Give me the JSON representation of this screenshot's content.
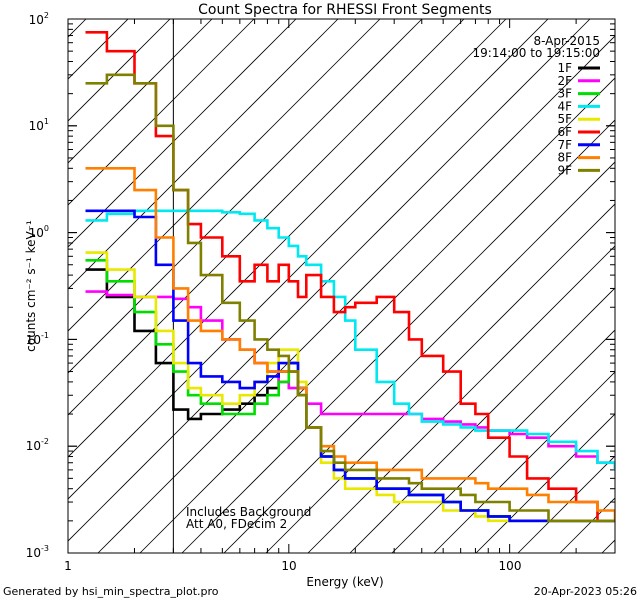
{
  "chart_data": {
    "type": "line",
    "title": "Count Spectra for RHESSI Front Segments",
    "date": "8-Apr-2015",
    "time_range": "19:14:00 to 19:15:00",
    "xlabel": "Energy (keV)",
    "ylabel": "counts cm⁻² s⁻¹ keV⁻¹",
    "xscale": "log",
    "yscale": "log",
    "xlim": [
      1,
      300
    ],
    "ylim": [
      0.001,
      100
    ],
    "x_tick_labels": [
      "1",
      "10",
      "100"
    ],
    "y_tick_labels": [
      {
        "base": "10",
        "exp": "-3"
      },
      {
        "base": "10",
        "exp": "-2"
      },
      {
        "base": "10",
        "exp": "-1"
      },
      {
        "base": "10",
        "exp": "0"
      },
      {
        "base": "10",
        "exp": "1"
      },
      {
        "base": "10",
        "exp": "2"
      }
    ],
    "hatched_region_max_energy": 3,
    "annotations": [
      "Includes Background",
      "Att A0, FDecim 2"
    ],
    "footer_left": "Generated by hsi_min_spectra_plot.pro",
    "footer_right": "20-Apr-2023 05:26",
    "legend_position": "top-right",
    "x": [
      1.2,
      1.5,
      2,
      2.5,
      3,
      3.5,
      4,
      5,
      6,
      7,
      8,
      9,
      10,
      11,
      12,
      14,
      16,
      18,
      20,
      25,
      30,
      35,
      40,
      50,
      60,
      70,
      80,
      100,
      120,
      150,
      200,
      250,
      300
    ],
    "series": [
      {
        "name": "1F",
        "color": "#000000",
        "values": [
          0.45,
          0.25,
          0.12,
          0.06,
          0.022,
          0.018,
          0.02,
          0.022,
          0.025,
          0.03,
          0.035,
          0.05,
          0.06,
          0.035,
          0.015,
          0.008,
          0.006,
          0.005,
          0.005,
          0.004,
          0.004,
          0.0035,
          0.0035,
          0.003,
          0.0025,
          0.0025,
          0.0022,
          0.002,
          0.002,
          0.002,
          0.002,
          0.002,
          0.002
        ]
      },
      {
        "name": "2F",
        "color": "#ff00ff",
        "values": [
          0.28,
          0.26,
          0.25,
          0.25,
          0.24,
          0.2,
          0.15,
          0.1,
          0.08,
          0.06,
          0.05,
          0.04,
          0.035,
          0.03,
          0.025,
          0.02,
          0.02,
          0.02,
          0.02,
          0.02,
          0.02,
          0.02,
          0.018,
          0.017,
          0.016,
          0.015,
          0.014,
          0.013,
          0.012,
          0.01,
          0.008,
          0.007,
          0.006
        ]
      },
      {
        "name": "3F",
        "color": "#00dd00",
        "values": [
          0.55,
          0.35,
          0.18,
          0.09,
          0.05,
          0.03,
          0.025,
          0.02,
          0.02,
          0.025,
          0.03,
          0.04,
          0.05,
          0.03,
          0.015,
          0.008,
          0.006,
          0.005,
          0.005,
          0.004,
          0.004,
          0.0035,
          0.0035,
          0.003,
          0.0025,
          0.0025,
          0.0022,
          0.002,
          0.002,
          0.002,
          0.002,
          0.002,
          0.002
        ]
      },
      {
        "name": "4F",
        "color": "#00e8f0",
        "values": [
          1.3,
          1.5,
          1.6,
          1.6,
          1.6,
          1.6,
          1.6,
          1.55,
          1.5,
          1.3,
          1.1,
          0.9,
          0.75,
          0.6,
          0.5,
          0.35,
          0.25,
          0.15,
          0.08,
          0.04,
          0.025,
          0.02,
          0.017,
          0.016,
          0.015,
          0.014,
          0.014,
          0.014,
          0.013,
          0.011,
          0.009,
          0.007,
          0.006
        ]
      },
      {
        "name": "5F",
        "color": "#e8e800",
        "values": [
          0.65,
          0.45,
          0.25,
          0.12,
          0.06,
          0.035,
          0.03,
          0.025,
          0.03,
          0.04,
          0.06,
          0.08,
          0.08,
          0.04,
          0.015,
          0.007,
          0.005,
          0.004,
          0.004,
          0.0035,
          0.003,
          0.003,
          0.003,
          0.0025,
          0.0025,
          0.0022,
          0.002,
          0.002,
          0.002,
          0.002,
          0.002,
          0.002,
          0.002
        ]
      },
      {
        "name": "6F",
        "color": "#ff0000",
        "values": [
          75,
          50,
          25,
          8,
          2.5,
          1.2,
          0.9,
          0.6,
          0.35,
          0.5,
          0.35,
          0.5,
          0.35,
          0.25,
          0.4,
          0.25,
          0.18,
          0.2,
          0.22,
          0.25,
          0.18,
          0.1,
          0.07,
          0.05,
          0.025,
          0.02,
          0.012,
          0.008,
          0.005,
          0.004,
          0.003,
          0.002,
          0.002
        ]
      },
      {
        "name": "7F",
        "color": "#0000ff",
        "values": [
          1.6,
          1.6,
          1.4,
          0.5,
          0.15,
          0.06,
          0.045,
          0.04,
          0.035,
          0.04,
          0.045,
          0.06,
          0.06,
          0.035,
          0.015,
          0.008,
          0.006,
          0.005,
          0.005,
          0.004,
          0.004,
          0.0035,
          0.0035,
          0.003,
          0.0025,
          0.0025,
          0.0022,
          0.002,
          0.002,
          0.002,
          0.002,
          0.002,
          0.002
        ]
      },
      {
        "name": "8F",
        "color": "#ff7f00",
        "values": [
          4,
          4,
          2.5,
          0.9,
          0.3,
          0.15,
          0.12,
          0.1,
          0.08,
          0.06,
          0.05,
          0.05,
          0.05,
          0.035,
          0.015,
          0.01,
          0.008,
          0.007,
          0.007,
          0.006,
          0.006,
          0.006,
          0.005,
          0.005,
          0.005,
          0.0045,
          0.004,
          0.004,
          0.0035,
          0.003,
          0.003,
          0.0025,
          0.002
        ]
      },
      {
        "name": "9F",
        "color": "#808000",
        "values": [
          25,
          30,
          25,
          10,
          2.5,
          0.8,
          0.4,
          0.22,
          0.15,
          0.1,
          0.08,
          0.07,
          0.05,
          0.03,
          0.015,
          0.009,
          0.007,
          0.006,
          0.006,
          0.005,
          0.005,
          0.0045,
          0.004,
          0.004,
          0.0035,
          0.003,
          0.003,
          0.0025,
          0.0025,
          0.002,
          0.002,
          0.002,
          0.002
        ]
      }
    ]
  }
}
